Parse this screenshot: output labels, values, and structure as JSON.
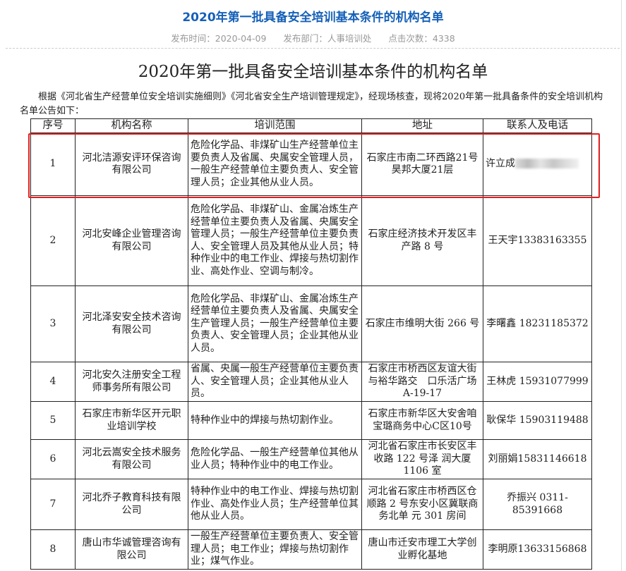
{
  "header": {
    "title": "2020年第一批具备安全培训基本条件的机构名单",
    "publish_time": "发布时间：2020-04-09",
    "department": "发布部门：人事培训处",
    "clicks": "点击次数：4338"
  },
  "article": {
    "title": "2020年第一批具备安全培训基本条件的机构名单",
    "intro": "根据《河北省生产经营单位安全培训实施细则》《河北省安全生产培训管理规定》，经现场核查，现将2020年第一批具备条件的安全培训机构名单公告如下："
  },
  "table": {
    "headers": [
      "序号",
      "机构名称",
      "培训范围",
      "地址",
      "联系人及电话"
    ],
    "rows": [
      {
        "no": "1",
        "name": "河北洁源安评环保咨询有限公司",
        "scope": "危险化学品、非煤矿山生产经营单位主要负责人及省属、央属安全管理人员，一般生产经营单位主要负责人、安全管理人员；企业其他从业人员。",
        "address": "石家庄市南二环西路21号昊邦大厦21层",
        "contact": "许立成"
      },
      {
        "no": "2",
        "name": "河北安峰企业管理咨询有限公司",
        "scope": "危险化学品、非煤矿山、金属冶炼生产经营单位主要负责人及省属、央属安全管理人员；一般生产经营单位主要负责人、安全管理人员及其他从业人员；特种作业中的电工作业、焊接与热切割作业、高处作业、空调与制冷。",
        "address": "石家庄经济技术开发区丰产路 8 号",
        "contact": "王天宇13383163355"
      },
      {
        "no": "3",
        "name": "河北泽安安全技术咨询有限公司",
        "scope": "危险化学品、非煤矿山、金属冶炼生产经营单位主要负责人及省属、央属安全生产管理人员；一般生产经营单位主要负责人、安全管理人员；企业其他从业人员。",
        "address": "石家庄市维明大街 266 号",
        "contact": "李曙鑫 18231185372"
      },
      {
        "no": "4",
        "name": "河北安久注册安全工程师事务所有限公司",
        "scope": "省属、央属一般生产经营单位主要负责人、安全管理人员；企业其他从业人员。",
        "address": "石家庄市桥西区友谊大街与裕华路交　口乐活广场 A-19-17",
        "contact": "王林虎 15931077999"
      },
      {
        "no": "5",
        "name": "石家庄市新华区开元职业培训学校",
        "scope": "特种作业中的焊接与热切割作业。",
        "address": "石家庄市新华区大安舍咱宝璐商务中心C区10号",
        "contact": "耿保华 15903119488"
      },
      {
        "no": "6",
        "name": "河北云嵩安全技术服务有限公司",
        "scope": "危险化学品、一般生产经营单位其他从业人员；特种作业中的电工作业。",
        "address": "河北省石家庄市长安区丰收路 122 号泽 润大厦 1106 室",
        "contact": "刘丽娟15831146618"
      },
      {
        "no": "7",
        "name": "河北乔子教育科技有限公司",
        "scope": "特种作业中的电工作业、焊接与热切割作业、高处作业人员；生产经营单位其他从业人员。",
        "address": "河北省石家庄市桥西区仓顺路 2 号东安小区冀联商务北单 元 301 房间",
        "contact": "乔振兴 0311-85391668"
      },
      {
        "no": "8",
        "name": "唐山市华诚管理咨询有限公司",
        "scope": "一般生产经营单位主要负责人、安全管理人员；电工作业；焊接与热切割作业；煤气作业。",
        "address": "唐山市迁安市理工大学创业孵化基地",
        "contact": "李明原13633156868"
      }
    ]
  },
  "highlight_color": "#e02020"
}
